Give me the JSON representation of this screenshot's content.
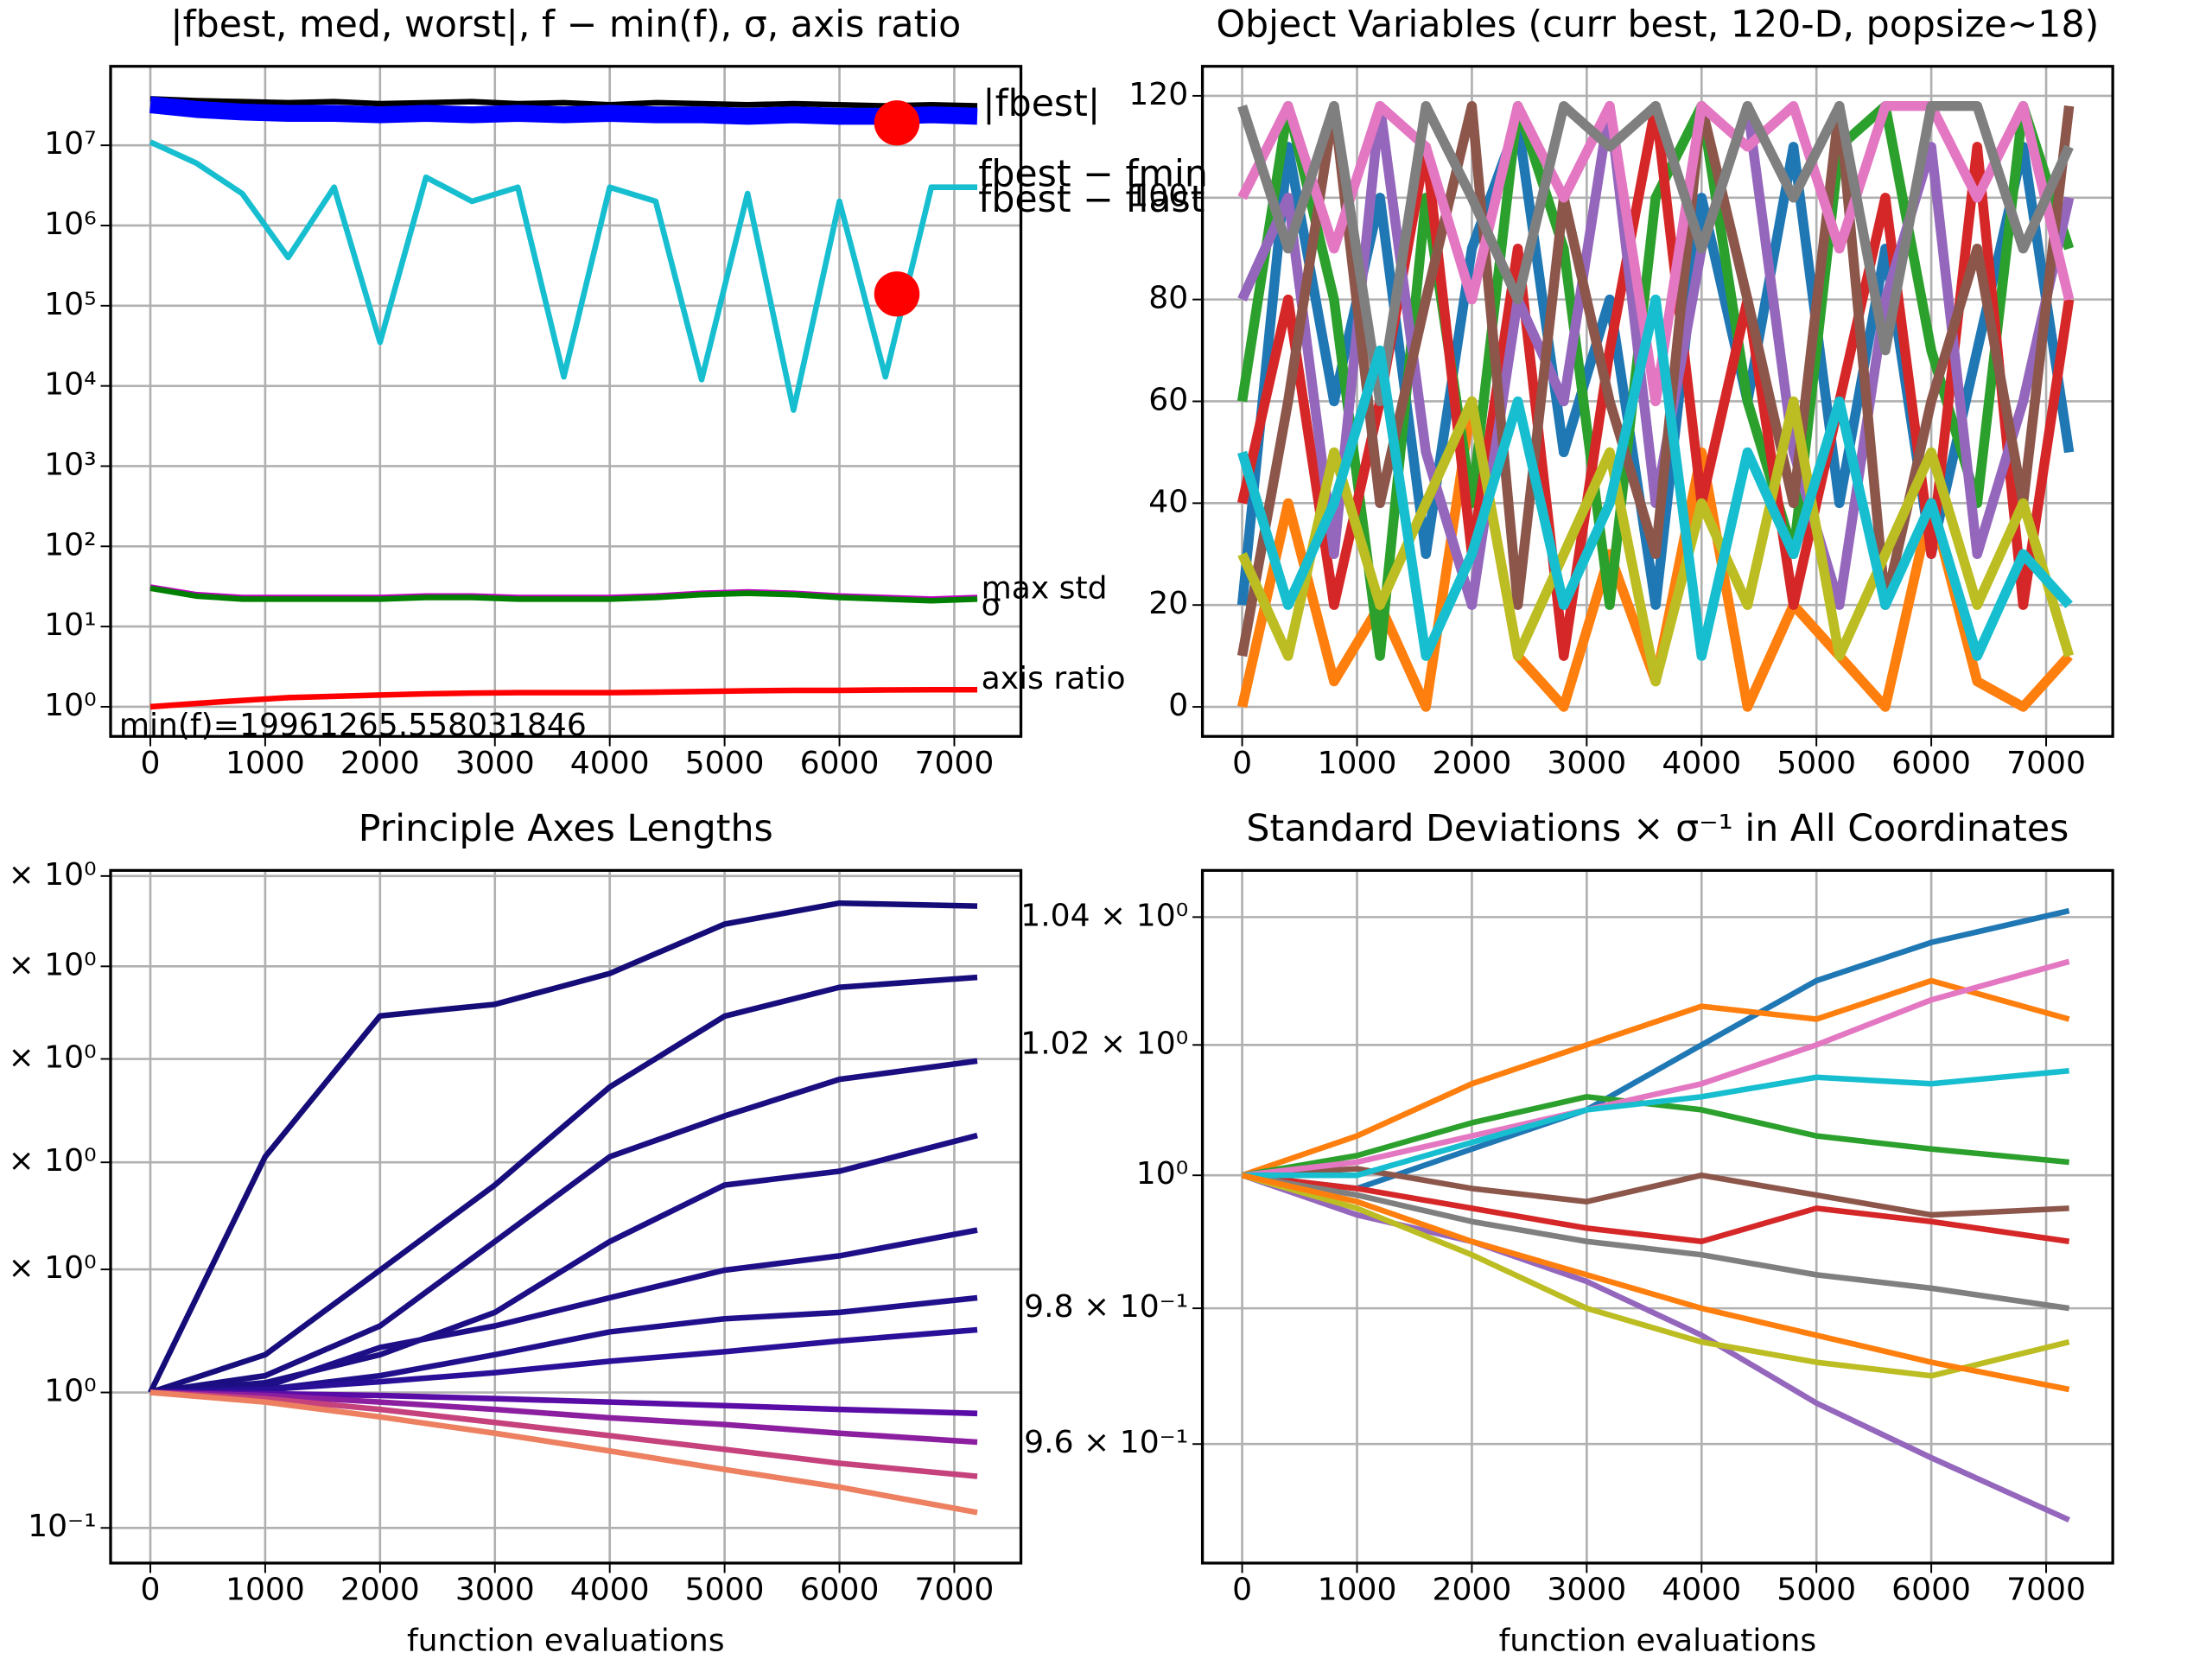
{
  "chart_data": [
    {
      "type": "line",
      "title": "|fbest, med, worst|, f − min(f), σ, axis ratio",
      "log_y": true,
      "grid": true,
      "x": [
        0,
        400,
        800,
        1200,
        1600,
        2000,
        2400,
        2800,
        3200,
        3600,
        4000,
        4400,
        4800,
        5200,
        5600,
        6000,
        6400,
        6800,
        7200
      ],
      "xlim": [
        -346,
        7580
      ],
      "xticks": [
        0,
        1000,
        2000,
        3000,
        4000,
        5000,
        6000,
        7000
      ],
      "ylim": [
        0.427,
        96600000
      ],
      "yticks": [
        {
          "value": 1,
          "label": "10⁰"
        },
        {
          "value": 10,
          "label": "10¹"
        },
        {
          "value": 100,
          "label": "10²"
        },
        {
          "value": 1000,
          "label": "10³"
        },
        {
          "value": 10000,
          "label": "10⁴"
        },
        {
          "value": 100000,
          "label": "10⁵"
        },
        {
          "value": 1000000,
          "label": "10⁶"
        },
        {
          "value": 10000000,
          "label": "10⁷"
        }
      ],
      "series": [
        {
          "color": "#000000",
          "values": [
            38000000,
            36000000,
            35000000,
            34000000,
            35000000,
            33000000,
            34000000,
            35000000,
            33000000,
            34000000,
            32000000,
            34000000,
            33000000,
            32000000,
            33000000,
            32000000,
            31000000,
            32000000,
            31000000
          ]
        },
        {
          "color": "#0000ff",
          "values": [
            32000000,
            28000000,
            26000000,
            25000000,
            25000000,
            24000000,
            25000000,
            24000000,
            25000000,
            24000000,
            25000000,
            24000000,
            24000000,
            23000000,
            24000000,
            23000000,
            23000000,
            24000000,
            23000000
          ]
        },
        {
          "color": "#17becf",
          "values": [
            11000000,
            6000000,
            2500000,
            400000,
            3000000,
            35000,
            4000000,
            2000000,
            3000000,
            13000,
            3000000,
            2000000,
            12000,
            2500000,
            5000,
            2000000,
            13000,
            3000000,
            3000000
          ]
        },
        {
          "color": "#bf00bf",
          "values": [
            31,
            25,
            23,
            23,
            23,
            23,
            24,
            24,
            23,
            23,
            23,
            24,
            26,
            27,
            26,
            24,
            23,
            22,
            23
          ]
        },
        {
          "color": "#008000",
          "values": [
            30,
            24,
            22,
            22,
            22,
            22,
            23,
            23,
            22,
            22,
            22,
            23,
            25,
            26,
            25,
            23,
            22,
            21,
            22
          ]
        },
        {
          "color": "#ff0000",
          "values": [
            1,
            1.1,
            1.2,
            1.3,
            1.35,
            1.4,
            1.45,
            1.48,
            1.5,
            1.5,
            1.5,
            1.52,
            1.55,
            1.58,
            1.6,
            1.6,
            1.62,
            1.63,
            1.63
          ]
        }
      ],
      "markers": {
        "color": "#ff0000",
        "x": [
          6500,
          6500
        ],
        "values": [
          19000000,
          140000
        ]
      },
      "annotations": [
        "|fbest|",
        "fbest − fmin",
        "fbest − flast",
        "max std",
        "σ",
        "axis ratio",
        "min(f)=19961265.558031846"
      ]
    },
    {
      "type": "line",
      "title": "Object Variables (curr best, 120-D, popsize~18)",
      "grid": true,
      "x": [
        0,
        400,
        800,
        1200,
        1600,
        2000,
        2400,
        2800,
        3200,
        3600,
        4000,
        4400,
        4800,
        5200,
        5600,
        6000,
        6400,
        6800,
        7200
      ],
      "xlim": [
        -346,
        7580
      ],
      "xticks": [
        0,
        1000,
        2000,
        3000,
        4000,
        5000,
        6000,
        7000
      ],
      "ylim": [
        -5.8,
        125.8
      ],
      "yticks": [
        0,
        20,
        40,
        60,
        80,
        100,
        120
      ],
      "series": [
        {
          "color": "#1f77b4",
          "values": [
            20,
            110,
            60,
            100,
            30,
            90,
            115,
            50,
            80,
            20,
            100,
            60,
            110,
            40,
            90,
            30,
            70,
            110,
            50
          ]
        },
        {
          "color": "#ff7f0e",
          "values": [
            0,
            40,
            5,
            20,
            0,
            60,
            10,
            0,
            30,
            5,
            50,
            0,
            20,
            10,
            0,
            40,
            5,
            0,
            10
          ]
        },
        {
          "color": "#2ca02c",
          "values": [
            60,
            118,
            80,
            10,
            100,
            40,
            118,
            90,
            20,
            100,
            118,
            60,
            30,
            110,
            118,
            70,
            40,
            118,
            90
          ]
        },
        {
          "color": "#d62728",
          "values": [
            40,
            80,
            20,
            60,
            110,
            30,
            90,
            10,
            70,
            118,
            40,
            80,
            20,
            60,
            100,
            30,
            110,
            20,
            80
          ]
        },
        {
          "color": "#9467bd",
          "values": [
            80,
            100,
            30,
            118,
            50,
            20,
            80,
            60,
            118,
            40,
            90,
            118,
            50,
            20,
            80,
            110,
            30,
            60,
            100
          ]
        },
        {
          "color": "#8c564b",
          "values": [
            10,
            60,
            118,
            40,
            80,
            118,
            20,
            100,
            60,
            30,
            118,
            80,
            40,
            118,
            20,
            60,
            90,
            40,
            118
          ]
        },
        {
          "color": "#e377c2",
          "values": [
            100,
            118,
            90,
            118,
            110,
            80,
            118,
            100,
            118,
            60,
            118,
            110,
            118,
            90,
            118,
            118,
            100,
            118,
            80
          ]
        },
        {
          "color": "#7f7f7f",
          "values": [
            118,
            90,
            118,
            60,
            118,
            100,
            80,
            118,
            110,
            118,
            90,
            118,
            100,
            118,
            70,
            118,
            118,
            90,
            110
          ]
        },
        {
          "color": "#bcbd22",
          "values": [
            30,
            10,
            50,
            20,
            40,
            60,
            10,
            30,
            50,
            5,
            40,
            20,
            60,
            10,
            30,
            50,
            20,
            40,
            10
          ]
        },
        {
          "color": "#17becf",
          "values": [
            50,
            20,
            40,
            70,
            10,
            30,
            60,
            20,
            40,
            80,
            10,
            50,
            30,
            60,
            20,
            40,
            10,
            30,
            20
          ]
        }
      ]
    },
    {
      "type": "line",
      "title": "Principle Axes Lengths",
      "log_y": true,
      "grid": true,
      "xlabel": "function evaluations",
      "x": [
        0,
        1000,
        2000,
        3000,
        4000,
        5000,
        6000,
        7200
      ],
      "xlim": [
        -346,
        7580
      ],
      "xticks": [
        0,
        1000,
        2000,
        3000,
        4000,
        5000,
        6000,
        7000
      ],
      "ylim": [
        0.055,
        7150
      ],
      "yticks": [
        {
          "value": 0.1,
          "label": "10⁻¹"
        },
        {
          "value": 1,
          "label": "10⁰"
        },
        {
          "value": 8.1,
          "label": "× 10⁰"
        },
        {
          "value": 50,
          "label": "× 10⁰"
        },
        {
          "value": 290,
          "label": "× 10⁰"
        },
        {
          "value": 1400,
          "label": "× 10⁰"
        },
        {
          "value": 6500,
          "label": "× 10⁰"
        }
      ],
      "series": [
        {
          "color": "#160c78",
          "values": [
            1,
            55,
            603,
            734,
            1240,
            2870,
            4100,
            3900
          ]
        },
        {
          "color": "#180d7c",
          "values": [
            1,
            1.9,
            8,
            34,
            180,
            600,
            980,
            1160
          ]
        },
        {
          "color": "#1a0e80",
          "values": [
            1,
            1.33,
            3.1,
            13,
            55,
            110,
            205,
            280
          ]
        },
        {
          "color": "#1c0e84",
          "values": [
            1,
            1.18,
            1.9,
            3.9,
            13,
            34,
            43,
            79
          ]
        },
        {
          "color": "#1e0f88",
          "values": [
            1,
            1.1,
            2.15,
            3.1,
            5,
            8,
            10.2,
            15.8
          ]
        },
        {
          "color": "#20108c",
          "values": [
            1,
            1.05,
            1.33,
            1.9,
            2.8,
            3.5,
            3.9,
            5
          ]
        },
        {
          "color": "#2a0f98",
          "values": [
            1,
            1.05,
            1.2,
            1.4,
            1.7,
            2,
            2.4,
            2.9
          ]
        },
        {
          "color": "#5a0ca6",
          "values": [
            1,
            0.98,
            0.95,
            0.9,
            0.85,
            0.8,
            0.75,
            0.7
          ]
        },
        {
          "color": "#8c1fa0",
          "values": [
            1,
            0.95,
            0.85,
            0.75,
            0.65,
            0.58,
            0.5,
            0.43
          ]
        },
        {
          "color": "#c5427d",
          "values": [
            1,
            0.9,
            0.75,
            0.6,
            0.48,
            0.38,
            0.3,
            0.24
          ]
        },
        {
          "color": "#ec8060",
          "values": [
            1,
            0.85,
            0.66,
            0.5,
            0.37,
            0.27,
            0.2,
            0.13
          ]
        }
      ]
    },
    {
      "type": "line",
      "title": "Standard Deviations × σ⁻¹ in All Coordinates",
      "log_y": true,
      "grid": true,
      "xlabel": "function evaluations",
      "x": [
        0,
        1000,
        2000,
        3000,
        4000,
        5000,
        6000,
        7200
      ],
      "xlim": [
        -346,
        7580
      ],
      "xticks": [
        0,
        1000,
        2000,
        3000,
        4000,
        5000,
        6000,
        7000
      ],
      "ylim": [
        0.9428,
        1.0474
      ],
      "yticks": [
        {
          "value": 0.96,
          "label": "9.6 × 10⁻¹"
        },
        {
          "value": 0.98,
          "label": "9.8 × 10⁻¹"
        },
        {
          "value": 1,
          "label": "10⁰"
        },
        {
          "value": 1.02,
          "label": "1.02 × 10⁰"
        },
        {
          "value": 1.04,
          "label": "1.04 × 10⁰"
        }
      ],
      "series": [
        {
          "color": "#1f77b4",
          "values": [
            1,
            0.998,
            1.004,
            1.01,
            1.02,
            1.03,
            1.036,
            1.041
          ]
        },
        {
          "color": "#ff7f0e",
          "values": [
            1,
            1.006,
            1.014,
            1.02,
            1.026,
            1.024,
            1.03,
            1.024
          ]
        },
        {
          "color": "#2ca02c",
          "values": [
            1,
            1.003,
            1.008,
            1.012,
            1.01,
            1.006,
            1.004,
            1.002
          ]
        },
        {
          "color": "#d62728",
          "values": [
            1,
            0.998,
            0.995,
            0.992,
            0.99,
            0.995,
            0.993,
            0.99
          ]
        },
        {
          "color": "#9467bd",
          "values": [
            1,
            0.994,
            0.99,
            0.984,
            0.976,
            0.966,
            0.958,
            0.949
          ]
        },
        {
          "color": "#8c564b",
          "values": [
            1,
            1.001,
            0.998,
            0.996,
            1,
            0.997,
            0.994,
            0.995
          ]
        },
        {
          "color": "#e377c2",
          "values": [
            1,
            1.002,
            1.006,
            1.01,
            1.014,
            1.02,
            1.027,
            1.033
          ]
        },
        {
          "color": "#7f7f7f",
          "values": [
            1,
            0.997,
            0.993,
            0.99,
            0.988,
            0.985,
            0.983,
            0.98
          ]
        },
        {
          "color": "#bcbd22",
          "values": [
            1,
            0.995,
            0.988,
            0.98,
            0.975,
            0.972,
            0.97,
            0.975
          ]
        },
        {
          "color": "#17becf",
          "values": [
            1,
            1,
            1.005,
            1.01,
            1.012,
            1.015,
            1.014,
            1.016
          ]
        },
        {
          "color": "#ff7f0e",
          "values": [
            1,
            0.996,
            0.99,
            0.985,
            0.98,
            0.976,
            0.972,
            0.968
          ]
        }
      ]
    }
  ]
}
